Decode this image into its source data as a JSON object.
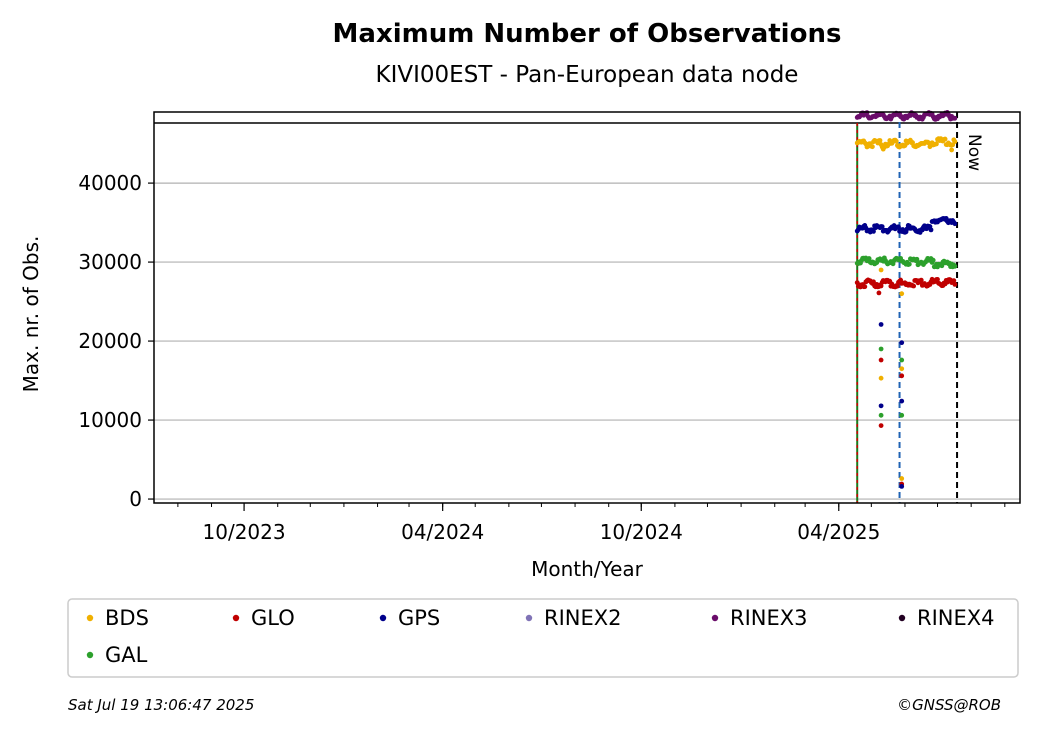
{
  "chart_data": {
    "type": "scatter",
    "title": "Maximum Number of Observations",
    "subtitle": "KIVI00EST - Pan-European data node",
    "xlabel": "Month/Year",
    "ylabel": "Max. nr. of Obs.",
    "xlim": [
      "2023-07-10",
      "2025-09-15"
    ],
    "ylim": [
      -500,
      49000
    ],
    "x_ticks": [
      {
        "date": "2023-10-01",
        "label": "10/2023"
      },
      {
        "date": "2024-04-01",
        "label": "04/2024"
      },
      {
        "date": "2024-10-01",
        "label": "10/2024"
      },
      {
        "date": "2025-04-01",
        "label": "04/2025"
      }
    ],
    "y_ticks": [
      0,
      10000,
      20000,
      30000,
      40000
    ],
    "grid": "horizontal",
    "reference_lines": {
      "horizontal_solid": 47600,
      "green_vertical": "2025-04-18",
      "blue_vertical": "2025-05-27",
      "now": {
        "date": "2025-07-19",
        "label": "Now"
      }
    },
    "data_start": "2025-04-18",
    "data_end": "2025-07-17",
    "series": [
      {
        "name": "BDS",
        "color": "#f0b000",
        "level": 45000,
        "level_late": 45200,
        "outliers": [
          {
            "date": "2025-05-10",
            "value": 29000
          },
          {
            "date": "2025-05-10",
            "value": 15300
          },
          {
            "date": "2025-05-12",
            "value": 44300
          },
          {
            "date": "2025-05-29",
            "value": 26000
          },
          {
            "date": "2025-05-29",
            "value": 16500
          },
          {
            "date": "2025-05-29",
            "value": 2600
          },
          {
            "date": "2025-07-14",
            "value": 44200
          }
        ]
      },
      {
        "name": "GLO",
        "color": "#c00000",
        "level": 27300,
        "level_late": 27400,
        "outliers": [
          {
            "date": "2025-05-08",
            "value": 26100
          },
          {
            "date": "2025-05-10",
            "value": 17600
          },
          {
            "date": "2025-05-10",
            "value": 9300
          },
          {
            "date": "2025-05-29",
            "value": 15600
          },
          {
            "date": "2025-05-29",
            "value": 1900
          }
        ]
      },
      {
        "name": "GPS",
        "color": "#00008b",
        "level": 34200,
        "level_late": 35300,
        "outliers": [
          {
            "date": "2025-05-10",
            "value": 22100
          },
          {
            "date": "2025-05-10",
            "value": 11800
          },
          {
            "date": "2025-05-29",
            "value": 19800
          },
          {
            "date": "2025-05-29",
            "value": 12400
          },
          {
            "date": "2025-05-29",
            "value": 1600
          }
        ]
      },
      {
        "name": "RINEX2",
        "color": "#8073b6",
        "level": null,
        "level_late": null,
        "outliers": []
      },
      {
        "name": "RINEX3",
        "color": "#6a0c6a",
        "level": 48500,
        "level_late": 48500,
        "outliers": []
      },
      {
        "name": "RINEX4",
        "color": "#220022",
        "level": null,
        "level_late": null,
        "outliers": []
      },
      {
        "name": "GAL",
        "color": "#2ca02c",
        "level": 30100,
        "level_late": 29800,
        "outliers": [
          {
            "date": "2025-05-10",
            "value": 19000
          },
          {
            "date": "2025-05-10",
            "value": 10600
          },
          {
            "date": "2025-05-29",
            "value": 17600
          },
          {
            "date": "2025-05-29",
            "value": 10600
          }
        ]
      }
    ],
    "legend": {
      "placement": "below",
      "entries": [
        "BDS",
        "GLO",
        "GPS",
        "RINEX2",
        "RINEX3",
        "RINEX4",
        "GAL"
      ]
    }
  },
  "footer": {
    "timestamp": "Sat Jul 19 13:06:47 2025",
    "credit": "©GNSS@ROB"
  }
}
